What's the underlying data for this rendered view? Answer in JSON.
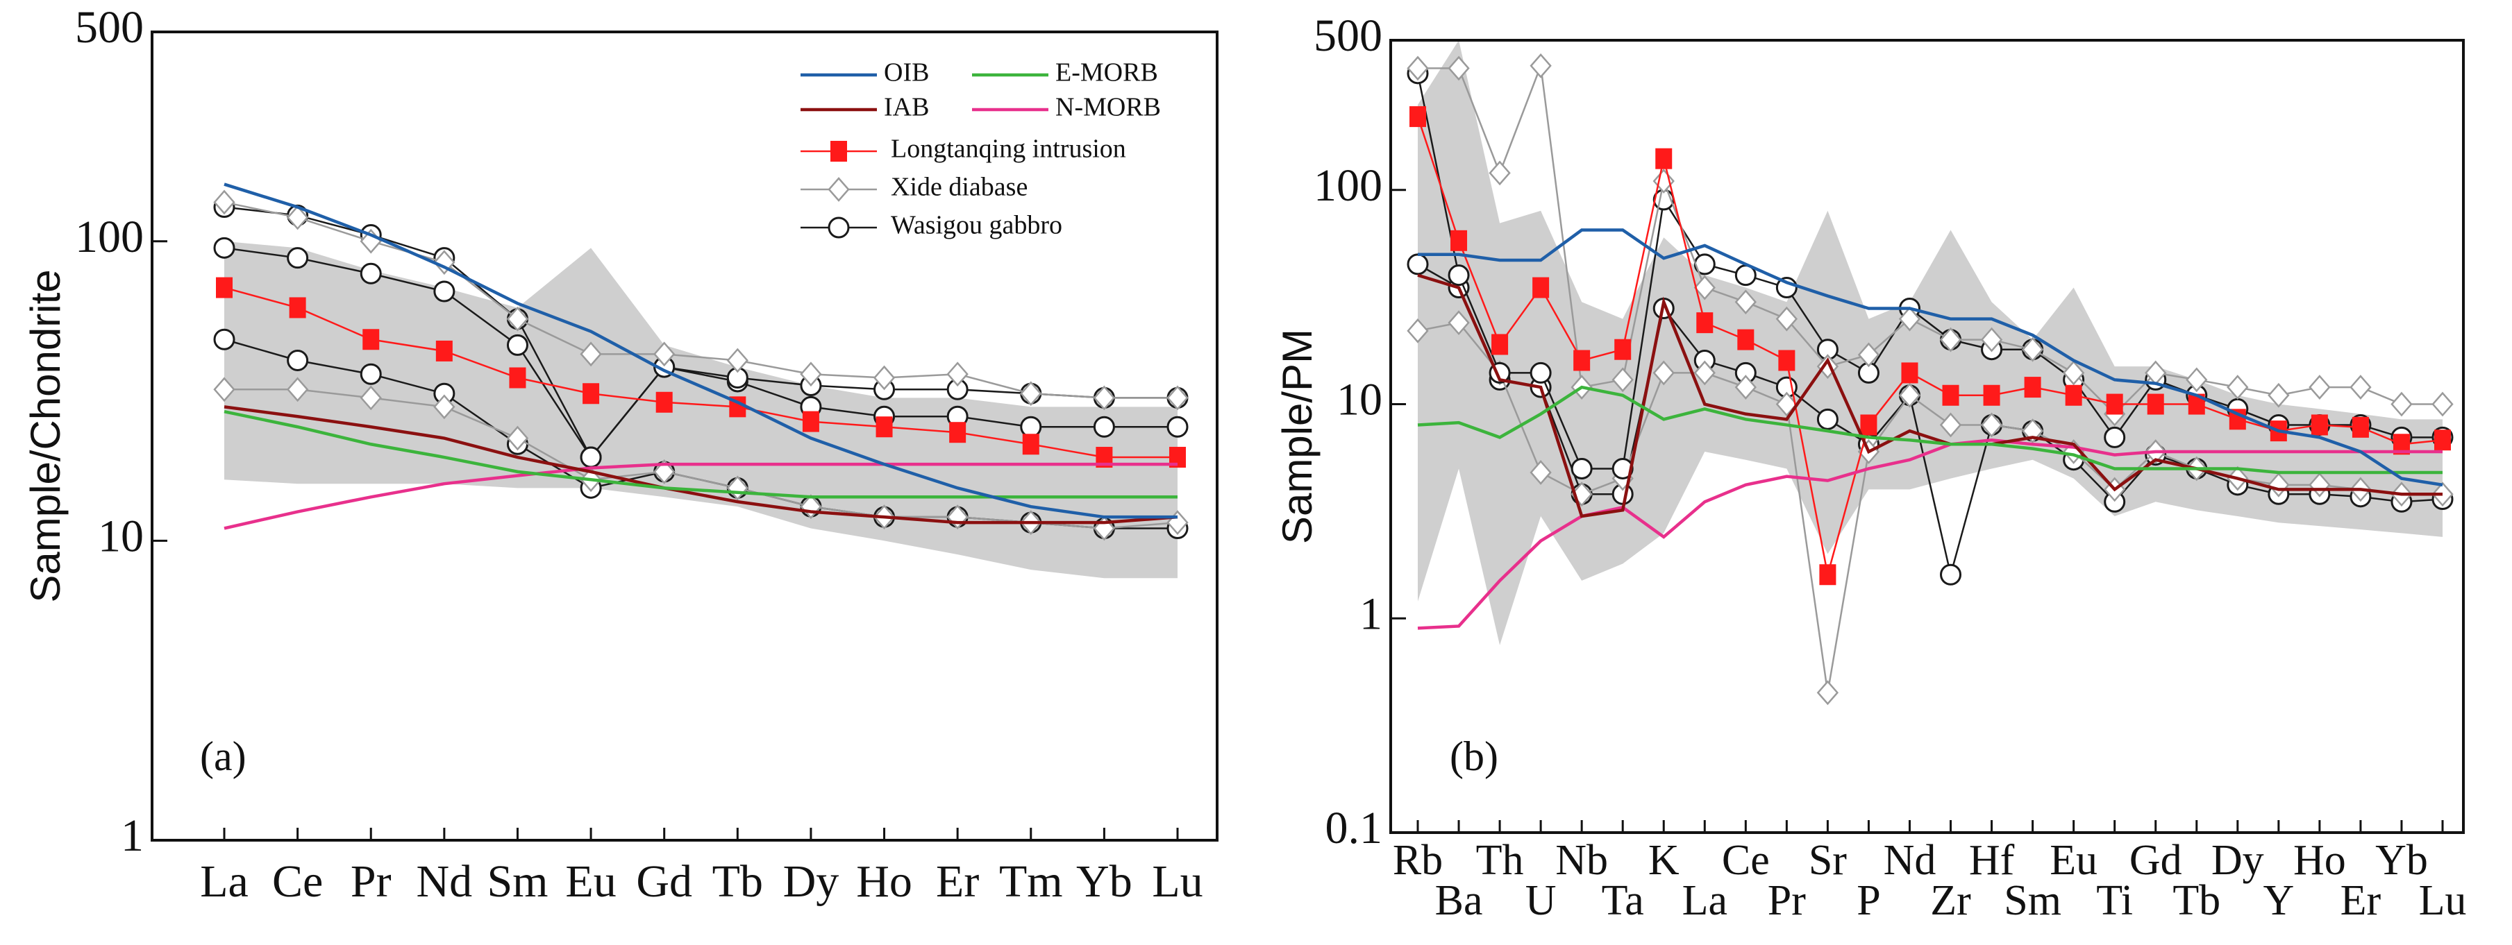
{
  "chart_data": [
    {
      "type": "line",
      "log": true,
      "ylabel": "Sample/Chondrite",
      "annotation": "(a)",
      "legend": true,
      "xlabel_rows": 1,
      "categories": [
        "La",
        "Ce",
        "Pr",
        "Nd",
        "Sm",
        "Eu",
        "Gd",
        "Tb",
        "Dy",
        "Ho",
        "Er",
        "Tm",
        "Yb",
        "Lu"
      ],
      "ylim": [
        1,
        500
      ],
      "yticks": [
        1,
        10,
        100,
        500
      ],
      "field": {
        "color": "#cfcfcf",
        "upper": [
          100,
          95,
          80,
          70,
          60,
          95,
          45,
          38,
          33,
          30,
          30,
          28,
          28,
          28
        ],
        "lower": [
          16,
          15.5,
          15.5,
          15.5,
          15,
          15,
          14,
          13,
          11,
          10,
          9,
          8,
          7.5,
          7.5
        ]
      },
      "series": [
        {
          "name": "OIB",
          "color": "#1f5fa8",
          "values": [
            155,
            130,
            105,
            82,
            62,
            50,
            37,
            29,
            22,
            18,
            15,
            13,
            12,
            12
          ]
        },
        {
          "name": "E-MORB",
          "color": "#3cb43c",
          "values": [
            27,
            24,
            21,
            19,
            17,
            16,
            15,
            14.5,
            14,
            14,
            14,
            14,
            14,
            14
          ]
        },
        {
          "name": "IAB",
          "color": "#8b1010",
          "values": [
            28,
            26,
            24,
            22,
            19,
            17,
            15,
            13.5,
            12.5,
            12,
            11.5,
            11.5,
            11.5,
            12
          ]
        },
        {
          "name": "N-MORB",
          "color": "#e8308c",
          "values": [
            11,
            12.5,
            14,
            15.5,
            16.5,
            17.5,
            18,
            18,
            18,
            18,
            18,
            18,
            18,
            18
          ]
        },
        {
          "name": "Longtanqing intrusion",
          "color": "#ff1a1a",
          "marker": "square",
          "values": [
            70,
            60,
            47,
            43,
            35,
            31,
            29,
            28,
            25,
            24,
            23,
            21,
            19,
            19
          ]
        },
        {
          "name": "Xide diabase",
          "color": "#9a9a9a",
          "marker": "diamond",
          "values": [
            135,
            120,
            100,
            85,
            55,
            42,
            42,
            40,
            36,
            35,
            36,
            31,
            30,
            30
          ]
        },
        {
          "name": "Wasigou gabbro",
          "color": "#1a1a1a",
          "marker": "circle",
          "values": [
            130,
            122,
            105,
            88,
            55,
            19,
            38,
            35,
            33,
            32,
            32,
            31,
            30,
            30
          ]
        },
        {
          "color": "#9a9a9a",
          "marker": "diamond",
          "values": [
            32,
            32,
            30,
            28,
            22,
            16,
            17,
            15,
            13,
            12,
            12,
            11.5,
            11,
            11.5
          ]
        },
        {
          "color": "#1a1a1a",
          "marker": "circle",
          "values": [
            95,
            88,
            78,
            68,
            45,
            19,
            38,
            34,
            28,
            26,
            26,
            24,
            24,
            24
          ]
        },
        {
          "color": "#1a1a1a",
          "marker": "circle",
          "values": [
            47,
            40,
            36,
            31,
            21,
            15,
            17,
            15,
            13,
            12,
            12,
            11.5,
            11,
            11
          ]
        }
      ]
    },
    {
      "type": "line",
      "log": true,
      "ylabel": "Sample/PM",
      "annotation": "(b)",
      "legend": false,
      "xlabel_rows": 2,
      "categories": [
        "Rb",
        "Ba",
        "Th",
        "U",
        "Nb",
        "Ta",
        "K",
        "La",
        "Ce",
        "Pr",
        "Sr",
        "P",
        "Nd",
        "Zr",
        "Hf",
        "Sm",
        "Eu",
        "Ti",
        "Gd",
        "Tb",
        "Dy",
        "Y",
        "Ho",
        "Er",
        "Yb",
        "Lu"
      ],
      "ylim": [
        0.1,
        500
      ],
      "yticks": [
        0.1,
        1,
        10,
        100,
        500
      ],
      "field": {
        "color": "#cfcfcf",
        "upper": [
          250,
          500,
          70,
          80,
          30,
          25,
          60,
          40,
          35,
          30,
          80,
          25,
          30,
          65,
          30,
          20,
          35,
          15,
          15,
          13,
          11,
          10,
          9.5,
          9,
          8.5,
          8.5
        ],
        "lower": [
          1.2,
          5,
          0.75,
          3,
          1.5,
          1.8,
          2.5,
          6,
          5.5,
          5,
          2,
          4,
          4,
          4.5,
          5,
          5.5,
          4.5,
          3,
          3.5,
          3.2,
          3,
          2.8,
          2.7,
          2.6,
          2.5,
          2.4
        ]
      },
      "series": [
        {
          "color": "#1f5fa8",
          "values": [
            50,
            50,
            47,
            47,
            65,
            65,
            48,
            55,
            45,
            37,
            32,
            28,
            28,
            25,
            25,
            21,
            16,
            13,
            12.5,
            11,
            9,
            7.5,
            7,
            6,
            4.5,
            4.2
          ]
        },
        {
          "color": "#3cb43c",
          "values": [
            8,
            8.2,
            7,
            9,
            12,
            11,
            8.5,
            9.5,
            8.5,
            8,
            7.5,
            7,
            6.8,
            6.5,
            6.5,
            6.2,
            5.8,
            5,
            5,
            5,
            5,
            4.8,
            4.8,
            4.8,
            4.8,
            4.8
          ]
        },
        {
          "color": "#8b1010",
          "values": [
            40,
            35,
            13,
            12,
            3,
            3.2,
            30,
            10,
            9,
            8.5,
            16,
            6,
            7.5,
            6.5,
            6.5,
            7,
            6.5,
            4,
            5.5,
            5,
            4.5,
            4,
            4,
            4,
            3.8,
            3.8
          ]
        },
        {
          "color": "#e8308c",
          "values": [
            0.9,
            0.92,
            1.5,
            2.3,
            3,
            3.3,
            2.4,
            3.5,
            4.2,
            4.6,
            4.4,
            5,
            5.5,
            6.5,
            6.8,
            6.5,
            6.3,
            5.8,
            6,
            6,
            6,
            6,
            6,
            6,
            6,
            6
          ]
        },
        {
          "color": "#ff1a1a",
          "marker": "square",
          "values": [
            220,
            58,
            19,
            35,
            16,
            18,
            140,
            24,
            20,
            16,
            1.6,
            8,
            14,
            11,
            11,
            12,
            11,
            10,
            10,
            10,
            8.5,
            7.5,
            8,
            7.8,
            6.5,
            6.8
          ]
        },
        {
          "color": "#9a9a9a",
          "marker": "diamond",
          "values": [
            370,
            370,
            120,
            380,
            12,
            13,
            110,
            35,
            30,
            25,
            15,
            17,
            25,
            20,
            20,
            18,
            14,
            9,
            14,
            13,
            12,
            11,
            12,
            12,
            10,
            10
          ]
        },
        {
          "color": "#1a1a1a",
          "marker": "circle",
          "values": [
            350,
            40,
            14,
            14,
            5,
            5,
            90,
            45,
            40,
            35,
            18,
            14,
            28,
            20,
            18,
            18,
            13,
            7,
            13,
            11,
            9.5,
            8,
            8,
            8,
            7,
            7
          ]
        },
        {
          "color": "#9a9a9a",
          "marker": "diamond",
          "values": [
            22,
            24,
            14,
            4.8,
            3.8,
            4.5,
            14,
            14,
            12,
            10,
            0.45,
            6,
            11,
            8,
            8,
            7.5,
            6,
            4,
            6,
            5,
            4.5,
            4.2,
            4.2,
            4,
            3.8,
            3.8
          ]
        },
        {
          "color": "#1a1a1a",
          "marker": "circle",
          "values": [
            45,
            35,
            13,
            12,
            3.8,
            3.8,
            28,
            16,
            14,
            12,
            8.5,
            6.5,
            11,
            1.6,
            8,
            7.5,
            5.5,
            3.5,
            5.8,
            5,
            4.2,
            3.8,
            3.8,
            3.7,
            3.5,
            3.6
          ]
        }
      ]
    }
  ]
}
